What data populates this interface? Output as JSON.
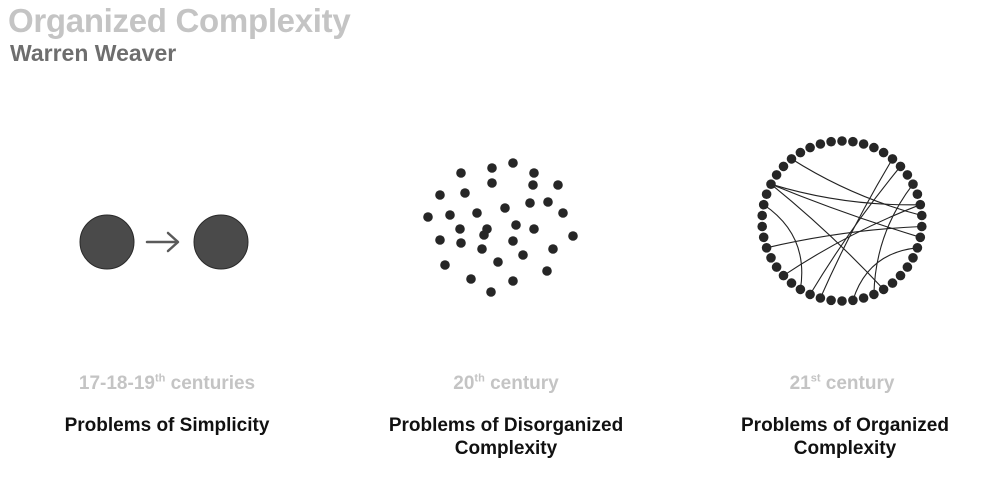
{
  "header": {
    "title": "Organized Complexity",
    "subtitle": "Warren Weaver"
  },
  "panels": [
    {
      "era_prefix": "17-18-19",
      "era_sup": "th",
      "era_suffix": " centuries",
      "caption_lines": [
        "Problems of Simplicity"
      ]
    },
    {
      "era_prefix": "20",
      "era_sup": "th",
      "era_suffix": " century",
      "caption_lines": [
        "Problems of Disorganized",
        "Complexity"
      ]
    },
    {
      "era_prefix": "21",
      "era_sup": "st",
      "era_suffix": " century",
      "caption_lines": [
        "Problems of Organized",
        "Complexity"
      ]
    }
  ],
  "colors": {
    "node_fill": "#4a4a4a",
    "dot_fill": "#262626",
    "arrow": "#5a5a5a",
    "era_text": "#c4c4c4",
    "caption_text": "#111111"
  },
  "icons": {
    "arrow": "right-arrow-icon"
  }
}
